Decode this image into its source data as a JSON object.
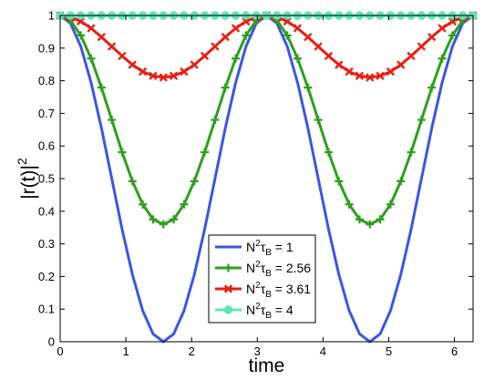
{
  "chart_data": {
    "type": "line",
    "title": "",
    "xlabel": "time",
    "ylabel": "|r(t)|",
    "ylabel_sup": "2",
    "xlim": [
      0,
      6.283
    ],
    "ylim": [
      0,
      1
    ],
    "x_ticks": [
      0,
      1,
      2,
      3,
      4,
      5,
      6
    ],
    "y_ticks": [
      0,
      0.1,
      0.2,
      0.3,
      0.4,
      0.5,
      0.6,
      0.7,
      0.8,
      0.9,
      1
    ],
    "grid": false,
    "legend_position": "bottom-center",
    "series": [
      {
        "name": "N²τ_B = 1",
        "legend": {
          "base": "N",
          "sup": "2",
          "tau": "τ",
          "sub": "B",
          "rest": " = 1"
        },
        "color": "#3b55e6",
        "marker": "none",
        "min_value": 0,
        "period": 3.1416,
        "x": [
          0,
          0.1571,
          0.3142,
          0.4712,
          0.6283,
          0.7854,
          0.9425,
          1.0996,
          1.2566,
          1.4137,
          1.5708,
          1.7279,
          1.885,
          2.042,
          2.1991,
          2.3562,
          2.5133,
          2.6704,
          2.8274,
          2.9845,
          3.1416,
          3.2987,
          3.4558,
          3.6128,
          3.7699,
          3.927,
          4.0841,
          4.2412,
          4.3982,
          4.5553,
          4.7124,
          4.8695,
          5.0265,
          5.1836,
          5.3407,
          5.4978,
          5.6549,
          5.8119,
          5.969,
          6.1261,
          6.2832
        ],
        "values": [
          1,
          0.976,
          0.905,
          0.794,
          0.655,
          0.5,
          0.345,
          0.206,
          0.095,
          0.024,
          0,
          0.024,
          0.095,
          0.206,
          0.345,
          0.5,
          0.655,
          0.794,
          0.905,
          0.976,
          1,
          0.976,
          0.905,
          0.794,
          0.655,
          0.5,
          0.345,
          0.206,
          0.095,
          0.024,
          0,
          0.024,
          0.095,
          0.206,
          0.345,
          0.5,
          0.655,
          0.794,
          0.905,
          0.976,
          1
        ]
      },
      {
        "name": "N²τ_B = 2.56",
        "legend": {
          "base": "N",
          "sup": "2",
          "tau": "τ",
          "sub": "B",
          "rest": " = 2.56"
        },
        "color": "#2da01c",
        "marker": "plus",
        "min_value": 0.36,
        "period": 3.1416,
        "x": [
          0,
          0.1571,
          0.3142,
          0.4712,
          0.6283,
          0.7854,
          0.9425,
          1.0996,
          1.2566,
          1.4137,
          1.5708,
          1.7279,
          1.885,
          2.042,
          2.1991,
          2.3562,
          2.5133,
          2.6704,
          2.8274,
          2.9845,
          3.1416,
          3.2987,
          3.4558,
          3.6128,
          3.7699,
          3.927,
          4.0841,
          4.2412,
          4.3982,
          4.5553,
          4.7124,
          4.8695,
          5.0265,
          5.1836,
          5.3407,
          5.4978,
          5.6549,
          5.8119,
          5.969,
          6.1261,
          6.2832
        ],
        "values": [
          1,
          0.985,
          0.939,
          0.868,
          0.779,
          0.68,
          0.581,
          0.492,
          0.421,
          0.375,
          0.36,
          0.375,
          0.421,
          0.492,
          0.581,
          0.68,
          0.779,
          0.868,
          0.939,
          0.985,
          1,
          0.985,
          0.939,
          0.868,
          0.779,
          0.68,
          0.581,
          0.492,
          0.421,
          0.375,
          0.36,
          0.375,
          0.421,
          0.492,
          0.581,
          0.68,
          0.779,
          0.868,
          0.939,
          0.985,
          1
        ]
      },
      {
        "name": "N²τ_B = 3.61",
        "legend": {
          "base": "N",
          "sup": "2",
          "tau": "τ",
          "sub": "B",
          "rest": " = 3.61"
        },
        "color": "#e81e14",
        "marker": "x",
        "min_value": 0.81,
        "period": 3.1416,
        "x": [
          0,
          0.1571,
          0.3142,
          0.4712,
          0.6283,
          0.7854,
          0.9425,
          1.0996,
          1.2566,
          1.4137,
          1.5708,
          1.7279,
          1.885,
          2.042,
          2.1991,
          2.3562,
          2.5133,
          2.6704,
          2.8274,
          2.9845,
          3.1416,
          3.2987,
          3.4558,
          3.6128,
          3.7699,
          3.927,
          4.0841,
          4.2412,
          4.3982,
          4.5553,
          4.7124,
          4.8695,
          5.0265,
          5.1836,
          5.3407,
          5.4978,
          5.6549,
          5.8119,
          5.969,
          6.1261,
          6.2832
        ],
        "values": [
          1,
          0.995,
          0.982,
          0.961,
          0.934,
          0.905,
          0.876,
          0.849,
          0.828,
          0.815,
          0.81,
          0.815,
          0.828,
          0.849,
          0.876,
          0.905,
          0.934,
          0.961,
          0.982,
          0.995,
          1,
          0.995,
          0.982,
          0.961,
          0.934,
          0.905,
          0.876,
          0.849,
          0.828,
          0.815,
          0.81,
          0.815,
          0.828,
          0.849,
          0.876,
          0.905,
          0.934,
          0.961,
          0.982,
          0.995,
          1
        ]
      },
      {
        "name": "N²τ_B = 4",
        "legend": {
          "base": "N",
          "sup": "2",
          "tau": "τ",
          "sub": "B",
          "rest": " = 4"
        },
        "color": "#5ee6b4",
        "marker": "circle",
        "min_value": 1,
        "period": 3.1416,
        "x": [
          0,
          0.1571,
          0.3142,
          0.4712,
          0.6283,
          0.7854,
          0.9425,
          1.0996,
          1.2566,
          1.4137,
          1.5708,
          1.7279,
          1.885,
          2.042,
          2.1991,
          2.3562,
          2.5133,
          2.6704,
          2.8274,
          2.9845,
          3.1416,
          3.2987,
          3.4558,
          3.6128,
          3.7699,
          3.927,
          4.0841,
          4.2412,
          4.3982,
          4.5553,
          4.7124,
          4.8695,
          5.0265,
          5.1836,
          5.3407,
          5.4978,
          5.6549,
          5.8119,
          5.969,
          6.1261,
          6.2832
        ],
        "values": [
          1,
          1,
          1,
          1,
          1,
          1,
          1,
          1,
          1,
          1,
          1,
          1,
          1,
          1,
          1,
          1,
          1,
          1,
          1,
          1,
          1,
          1,
          1,
          1,
          1,
          1,
          1,
          1,
          1,
          1,
          1,
          1,
          1,
          1,
          1,
          1,
          1,
          1,
          1,
          1,
          1
        ]
      }
    ]
  }
}
